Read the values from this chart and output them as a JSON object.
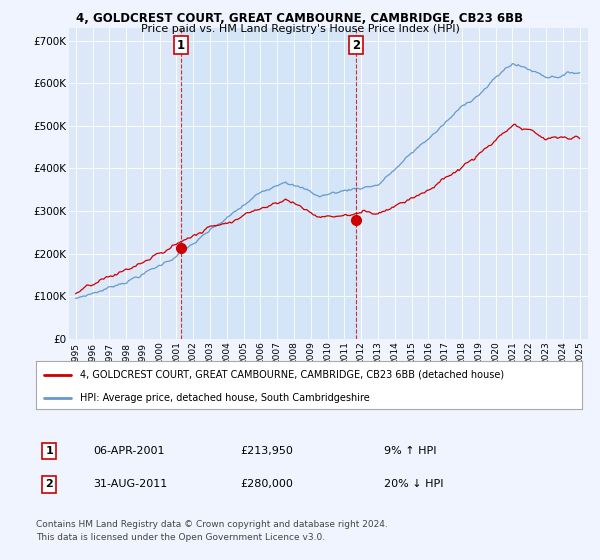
{
  "title1": "4, GOLDCREST COURT, GREAT CAMBOURNE, CAMBRIDGE, CB23 6BB",
  "title2": "Price paid vs. HM Land Registry's House Price Index (HPI)",
  "background_color": "#f0f4ff",
  "plot_bg": "#dce8f8",
  "sale1_date": "06-APR-2001",
  "sale1_price": 213950,
  "sale1_label": "9% ↑ HPI",
  "sale2_date": "31-AUG-2011",
  "sale2_price": 280000,
  "sale2_label": "20% ↓ HPI",
  "legend_line1": "4, GOLDCREST COURT, GREAT CAMBOURNE, CAMBRIDGE, CB23 6BB (detached house)",
  "legend_line2": "HPI: Average price, detached house, South Cambridgeshire",
  "footnote1": "Contains HM Land Registry data © Crown copyright and database right 2024.",
  "footnote2": "This data is licensed under the Open Government Licence v3.0.",
  "yticks": [
    0,
    100000,
    200000,
    300000,
    400000,
    500000,
    600000,
    700000
  ],
  "ytick_labels": [
    "£0",
    "£100K",
    "£200K",
    "£300K",
    "£400K",
    "£500K",
    "£600K",
    "£700K"
  ],
  "ylim": [
    0,
    730000
  ],
  "sale1_x": 2001.27,
  "sale2_x": 2011.67,
  "red_color": "#cc0000",
  "blue_color": "#6699cc",
  "shade_color": "#d0e4f7"
}
